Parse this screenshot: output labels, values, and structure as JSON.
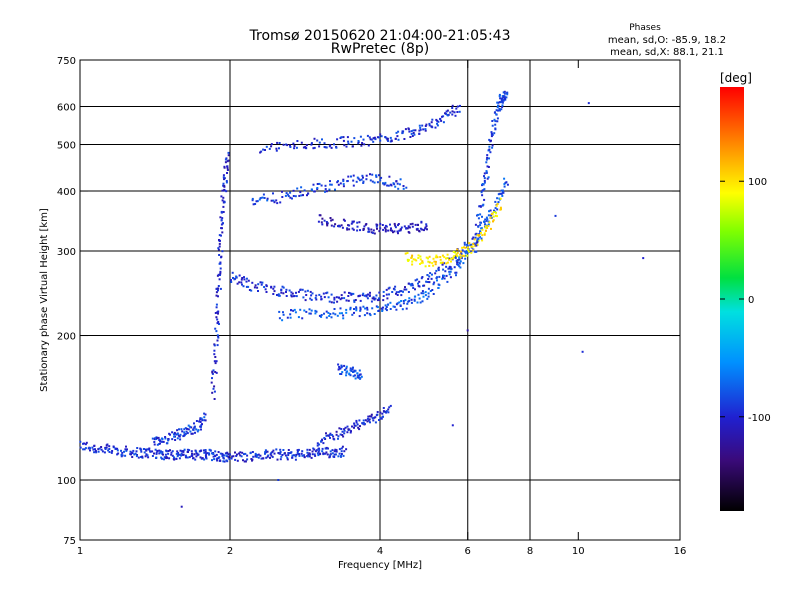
{
  "chart_data": {
    "type": "scatter",
    "title": "Tromsø 20150620 21:04:00-21:05:43",
    "subtitle": "RwPretec (8p)",
    "xlabel": "Frequency [MHz]",
    "ylabel": "Stationary phase Virtual Height [km]",
    "x_scale": "log2",
    "y_scale": "log",
    "xlim": [
      1,
      16
    ],
    "ylim": [
      75,
      750
    ],
    "x_ticks": [
      1,
      2,
      4,
      6,
      8,
      10,
      16
    ],
    "y_ticks": [
      75,
      100,
      200,
      300,
      400,
      500,
      600,
      750
    ],
    "grid_x": [
      2,
      4,
      6,
      8
    ],
    "grid_y": [
      100,
      200,
      300,
      400,
      500,
      600
    ],
    "phases_legend": {
      "title": "Phases",
      "line_o": "mean, sd,O:  -85.9, 18.2",
      "line_x": "mean, sd,X:  88.1, 21.1"
    },
    "colorbar": {
      "label": "[deg]",
      "range": [
        -180,
        180
      ],
      "ticks": [
        100,
        0,
        -100
      ],
      "tick_labels": [
        "100",
        "0",
        "-100"
      ],
      "colormap": "rainbow"
    },
    "traces": [
      {
        "x": [
          1.0,
          1.1,
          1.2,
          1.3,
          1.4,
          1.5,
          1.6,
          1.7,
          1.8,
          1.9,
          2.0,
          2.2,
          2.4,
          2.6,
          2.8,
          3.0,
          3.2,
          3.4
        ],
        "y": [
          118,
          116,
          115,
          114,
          114,
          113,
          113,
          113,
          113,
          112,
          112,
          112,
          113,
          113,
          113,
          114,
          114,
          115
        ],
        "phase": -95
      },
      {
        "x": [
          1.85,
          1.88,
          1.9,
          1.92,
          1.95,
          1.98
        ],
        "y": [
          150,
          200,
          260,
          330,
          410,
          480
        ],
        "phase": -100
      },
      {
        "x": [
          2.0,
          2.2,
          2.5,
          2.8,
          3.2,
          3.6,
          4.0,
          4.5,
          5.0,
          5.5,
          6.0
        ],
        "y": [
          265,
          255,
          248,
          243,
          240,
          240,
          242,
          250,
          262,
          280,
          310
        ],
        "phase": -95
      },
      {
        "x": [
          2.5,
          3.0,
          3.5,
          4.0,
          4.5,
          5.0,
          5.6,
          6.0,
          6.4,
          6.8,
          7.2
        ],
        "y": [
          220,
          222,
          223,
          226,
          232,
          245,
          270,
          300,
          330,
          370,
          420
        ],
        "phase": -80
      },
      {
        "x": [
          3.0,
          3.4,
          3.8,
          4.2,
          4.6,
          5.0
        ],
        "y": [
          350,
          340,
          335,
          333,
          335,
          340
        ],
        "phase": -110
      },
      {
        "x": [
          2.2,
          2.6,
          3.0,
          3.5,
          4.0,
          4.5
        ],
        "y": [
          380,
          390,
          405,
          420,
          425,
          410
        ],
        "phase": -90
      },
      {
        "x": [
          2.3,
          2.8,
          3.3,
          3.8,
          4.3,
          4.8,
          5.3,
          5.8
        ],
        "y": [
          490,
          500,
          505,
          510,
          520,
          540,
          560,
          600
        ],
        "phase": -95
      },
      {
        "x": [
          4.5,
          5.0,
          5.5,
          6.0,
          6.5,
          7.0
        ],
        "y": [
          290,
          285,
          290,
          300,
          330,
          380
        ],
        "phase": 100
      },
      {
        "x": [
          6.2,
          6.4,
          6.6,
          6.8,
          7.0,
          7.2
        ],
        "y": [
          300,
          380,
          460,
          560,
          620,
          640
        ],
        "phase": -90
      },
      {
        "x": [
          3.0,
          3.3,
          3.6,
          3.9,
          4.2
        ],
        "y": [
          120,
          125,
          130,
          135,
          140
        ],
        "phase": -100
      },
      {
        "x": [
          1.4,
          1.5,
          1.6,
          1.7,
          1.8
        ],
        "y": [
          120,
          122,
          125,
          128,
          135
        ],
        "phase": -90
      },
      {
        "x": [
          3.3,
          3.5,
          3.7
        ],
        "y": [
          170,
          168,
          165
        ],
        "phase": -80
      }
    ],
    "outliers": [
      {
        "x": 1.6,
        "y": 88,
        "phase": -110
      },
      {
        "x": 2.5,
        "y": 100,
        "phase": -90
      },
      {
        "x": 10.5,
        "y": 610,
        "phase": -95
      },
      {
        "x": 13.5,
        "y": 290,
        "phase": -100
      },
      {
        "x": 10.2,
        "y": 185,
        "phase": -95
      },
      {
        "x": 9.0,
        "y": 355,
        "phase": -90
      },
      {
        "x": 6.0,
        "y": 205,
        "phase": -120
      },
      {
        "x": 5.6,
        "y": 130,
        "phase": -100
      }
    ]
  }
}
